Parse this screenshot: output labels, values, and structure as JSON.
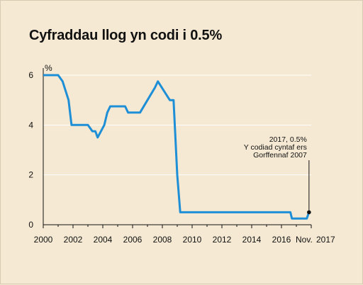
{
  "chart_data": {
    "type": "line",
    "title": "Cyfraddau llog yn codi i 0.5%",
    "ylabel": "%",
    "xlim": [
      2000,
      2018
    ],
    "ylim": [
      0,
      6
    ],
    "grid": true,
    "x_ticks": [
      "2000",
      "2002",
      "2004",
      "2006",
      "2008",
      "2010",
      "2012",
      "2014",
      "2016",
      "2018"
    ],
    "x_ticks_last_label": [
      "Nov.",
      "2017"
    ],
    "y_ticks": [
      "0",
      "2",
      "4",
      "6"
    ],
    "series": [
      {
        "color": "#1e8fd6",
        "points": [
          [
            2000.0,
            6.0
          ],
          [
            2001.0,
            6.0
          ],
          [
            2001.3,
            5.75
          ],
          [
            2001.7,
            5.0
          ],
          [
            2001.9,
            4.0
          ],
          [
            2003.0,
            4.0
          ],
          [
            2003.3,
            3.75
          ],
          [
            2003.5,
            3.75
          ],
          [
            2003.65,
            3.5
          ],
          [
            2004.1,
            4.0
          ],
          [
            2004.3,
            4.5
          ],
          [
            2004.5,
            4.75
          ],
          [
            2005.5,
            4.75
          ],
          [
            2005.7,
            4.5
          ],
          [
            2006.5,
            4.5
          ],
          [
            2007.0,
            5.0
          ],
          [
            2007.5,
            5.5
          ],
          [
            2007.7,
            5.75
          ],
          [
            2008.5,
            5.0
          ],
          [
            2008.75,
            5.0
          ],
          [
            2009.0,
            2.0
          ],
          [
            2009.2,
            0.5
          ],
          [
            2016.6,
            0.5
          ],
          [
            2016.7,
            0.25
          ],
          [
            2017.7,
            0.25
          ],
          [
            2017.85,
            0.5
          ]
        ]
      }
    ],
    "annotation": {
      "lines": [
        "2017, 0.5%",
        "Y codiad cyntaf ers",
        "Gorffennaf 2007"
      ],
      "point": [
        2017.85,
        0.5
      ]
    },
    "highlight_color": "#cc2a1f"
  }
}
